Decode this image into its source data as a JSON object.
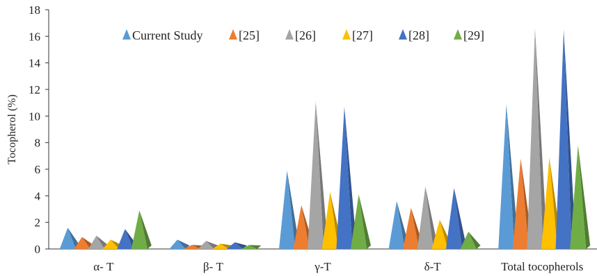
{
  "chart_data": {
    "type": "bar",
    "title": "",
    "xlabel": "",
    "ylabel": "Tocopherol (%)",
    "ylim": [
      0,
      18
    ],
    "yticks": [
      0,
      2,
      4,
      6,
      8,
      10,
      12,
      14,
      16,
      18
    ],
    "grid": false,
    "legend_position": "top",
    "categories": [
      "α- T",
      "β- T",
      "γ-T",
      "δ-T",
      "Total tocopherols"
    ],
    "series": [
      {
        "name": "Current Study",
        "color": "#5B9BD5",
        "values": [
          1.6,
          0.7,
          5.9,
          3.6,
          10.9
        ]
      },
      {
        "name": "[25]",
        "color": "#ED7D31",
        "values": [
          0.9,
          0.3,
          3.3,
          3.1,
          6.8
        ]
      },
      {
        "name": "[26]",
        "color": "#A5A5A5",
        "values": [
          1.0,
          0.6,
          11.1,
          4.7,
          16.6
        ]
      },
      {
        "name": "[27]",
        "color": "#FFC000",
        "values": [
          0.7,
          0.4,
          4.3,
          2.2,
          6.9
        ]
      },
      {
        "name": "[28]",
        "color": "#4472C4",
        "values": [
          1.5,
          0.5,
          10.7,
          4.6,
          16.5
        ]
      },
      {
        "name": "[29]",
        "color": "#70AD47",
        "values": [
          2.9,
          0.3,
          4.1,
          1.3,
          7.8
        ]
      }
    ]
  }
}
